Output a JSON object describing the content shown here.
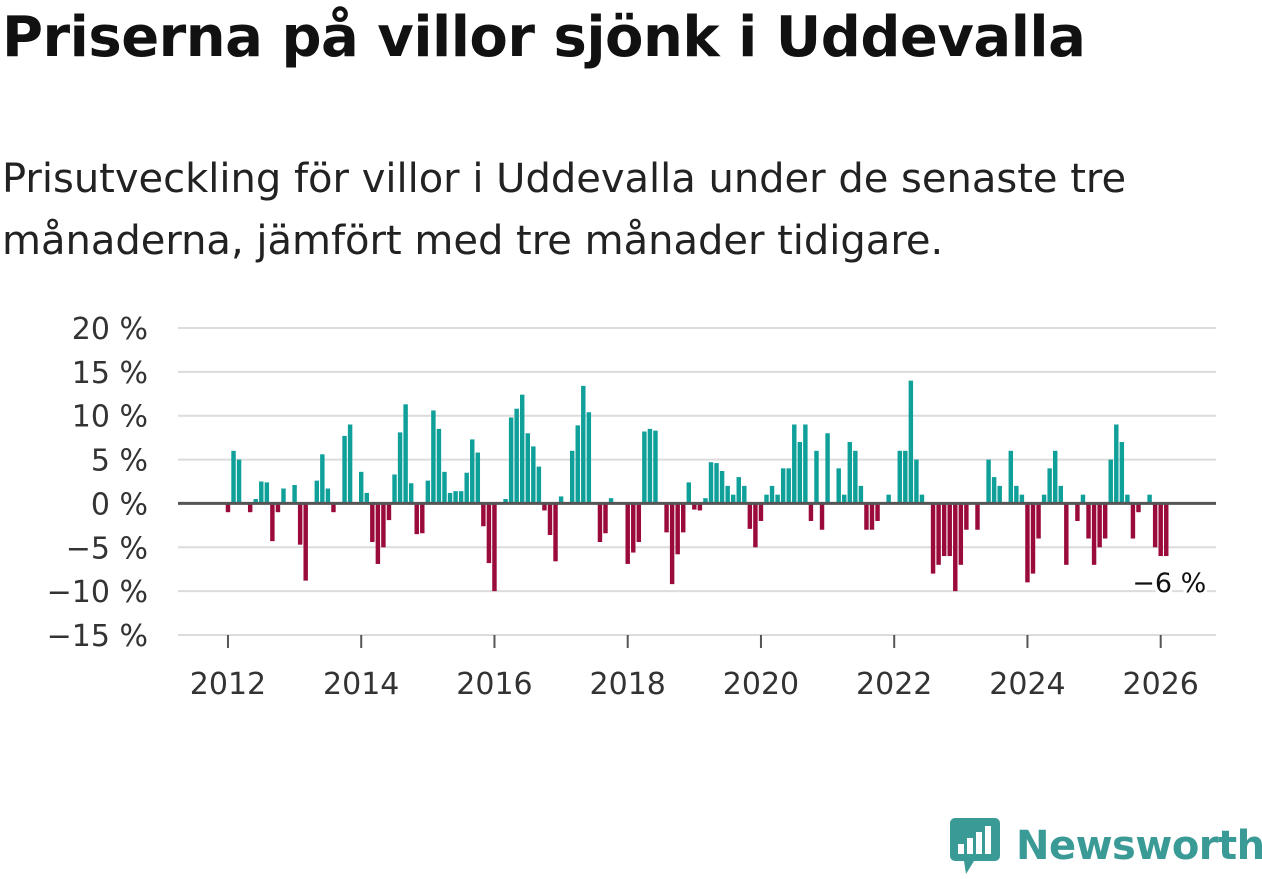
{
  "header": {
    "title": "Priserna på villor sjönk i Uddevalla",
    "subtitle": "Prisutveckling för villor i Uddevalla under de senaste tre månaderna, jämfört med tre månader tidigare."
  },
  "colors": {
    "positive": "#10a09a",
    "negative": "#9a0a3b",
    "grid": "#dcdcdc",
    "zero_line": "#555555",
    "axis_text": "#333333",
    "brand": "#3a9a96"
  },
  "chart_data": {
    "type": "bar",
    "title": "Priserna på villor sjönk i Uddevalla",
    "xlabel": "",
    "ylabel": "",
    "ylim": [
      -15,
      20
    ],
    "xlim": [
      2011.25,
      2026.83
    ],
    "yticks": [
      {
        "value": 20,
        "label": "20 %"
      },
      {
        "value": 15,
        "label": "15 %"
      },
      {
        "value": 10,
        "label": "10 %"
      },
      {
        "value": 5,
        "label": "5 %"
      },
      {
        "value": 0,
        "label": "0 %"
      },
      {
        "value": -5,
        "label": "−5 %"
      },
      {
        "value": -10,
        "label": "−10 %"
      },
      {
        "value": -15,
        "label": "−15 %"
      }
    ],
    "xticks": [
      {
        "value": 2012,
        "label": "2012"
      },
      {
        "value": 2014,
        "label": "2014"
      },
      {
        "value": 2016,
        "label": "2016"
      },
      {
        "value": 2018,
        "label": "2018"
      },
      {
        "value": 2020,
        "label": "2020"
      },
      {
        "value": 2022,
        "label": "2022"
      },
      {
        "value": 2024,
        "label": "2024"
      },
      {
        "value": 2026,
        "label": "2026"
      }
    ],
    "start": {
      "year": 2012,
      "month": 0
    },
    "values": [
      -1,
      6,
      5,
      0,
      -1,
      0.5,
      2.5,
      2.4,
      -4.3,
      -1,
      1.7,
      0,
      2.1,
      -4.7,
      -8.8,
      0,
      2.6,
      5.6,
      1.7,
      -1,
      0,
      7.7,
      9,
      0,
      3.6,
      1.2,
      -4.4,
      -6.9,
      -5,
      -1.9,
      3.3,
      8.1,
      11.3,
      2.3,
      -3.5,
      -3.4,
      2.6,
      10.6,
      8.5,
      3.6,
      1.2,
      1.4,
      1.4,
      3.5,
      7.3,
      5.8,
      -2.6,
      -6.8,
      -10,
      0,
      0.5,
      9.8,
      10.8,
      12.4,
      8,
      6.5,
      4.2,
      -0.8,
      -3.6,
      -6.6,
      0.8,
      0,
      6,
      8.9,
      13.4,
      10.4,
      0,
      -4.4,
      -3.4,
      0.6,
      0,
      0,
      -6.9,
      -5.6,
      -4.4,
      8.2,
      8.5,
      8.3,
      0,
      -3.3,
      -9.2,
      -5.8,
      -3.3,
      2.4,
      -0.7,
      -0.8,
      0.6,
      4.7,
      4.6,
      3.7,
      2,
      1,
      3,
      2,
      -2.9,
      -5,
      -2,
      1,
      2,
      1,
      4,
      4,
      9,
      7,
      9,
      -2,
      6,
      -3,
      8,
      0,
      4,
      1,
      7,
      6,
      2,
      -3,
      -3,
      -2,
      0,
      1,
      0,
      6,
      6,
      14,
      5,
      1,
      0,
      -8,
      -7,
      -6,
      -6,
      -10,
      -7,
      -3,
      0,
      -3,
      0,
      5,
      3,
      2,
      0,
      6,
      2,
      1,
      -9,
      -8,
      -4,
      1,
      4,
      6,
      2,
      -7,
      0,
      -2,
      1,
      -4,
      -7,
      -5,
      -4,
      5,
      9,
      7,
      1,
      -4,
      -1,
      0,
      1,
      -5,
      -6,
      -6
    ],
    "annotation": {
      "label": "−6 %",
      "value": -6
    }
  },
  "brand": {
    "name": "Newsworthy"
  }
}
